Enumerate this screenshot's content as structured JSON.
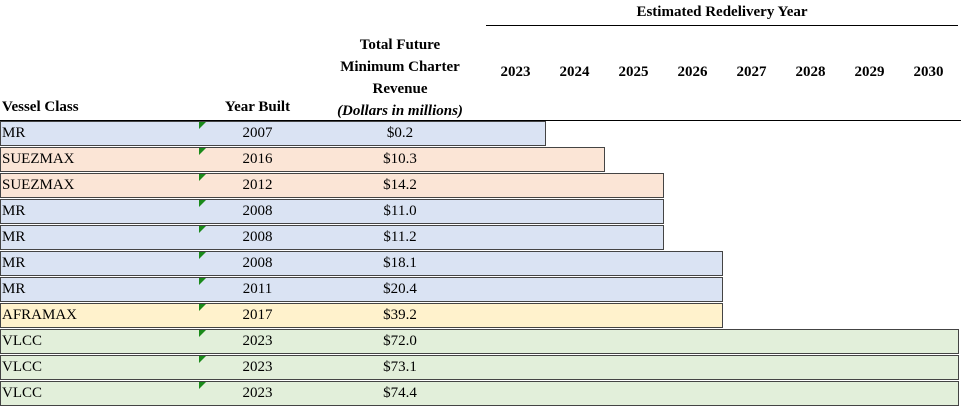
{
  "header": {
    "estimated_title": "Estimated Redelivery Year",
    "vessel_class": "Vessel Class",
    "year_built": "Year Built",
    "revenue_line1": "Total Future",
    "revenue_line2": "Minimum Charter",
    "revenue_line3": "Revenue",
    "revenue_units": "(Dollars in millions)",
    "years": [
      "2023",
      "2024",
      "2025",
      "2026",
      "2027",
      "2028",
      "2029",
      "2030"
    ]
  },
  "colors": {
    "MR": "#dae3f3",
    "SUEZMAX": "#fbe5d6",
    "AFRAMAX": "#fff2cc",
    "VLCC": "#e2efda"
  },
  "rows": [
    {
      "vessel_class": "MR",
      "year_built": "2007",
      "revenue": "$0.2",
      "redelivery_year": 2023
    },
    {
      "vessel_class": "SUEZMAX",
      "year_built": "2016",
      "revenue": "$10.3",
      "redelivery_year": 2024
    },
    {
      "vessel_class": "SUEZMAX",
      "year_built": "2012",
      "revenue": "$14.2",
      "redelivery_year": 2025
    },
    {
      "vessel_class": "MR",
      "year_built": "2008",
      "revenue": "$11.0",
      "redelivery_year": 2025
    },
    {
      "vessel_class": "MR",
      "year_built": "2008",
      "revenue": "$11.2",
      "redelivery_year": 2025
    },
    {
      "vessel_class": "MR",
      "year_built": "2008",
      "revenue": "$18.1",
      "redelivery_year": 2026
    },
    {
      "vessel_class": "MR",
      "year_built": "2011",
      "revenue": "$20.4",
      "redelivery_year": 2026
    },
    {
      "vessel_class": "AFRAMAX",
      "year_built": "2017",
      "revenue": "$39.2",
      "redelivery_year": 2026
    },
    {
      "vessel_class": "VLCC",
      "year_built": "2023",
      "revenue": "$72.0",
      "redelivery_year": 2030
    },
    {
      "vessel_class": "VLCC",
      "year_built": "2023",
      "revenue": "$73.1",
      "redelivery_year": 2030
    },
    {
      "vessel_class": "VLCC",
      "year_built": "2023",
      "revenue": "$74.4",
      "redelivery_year": 2030
    }
  ]
}
